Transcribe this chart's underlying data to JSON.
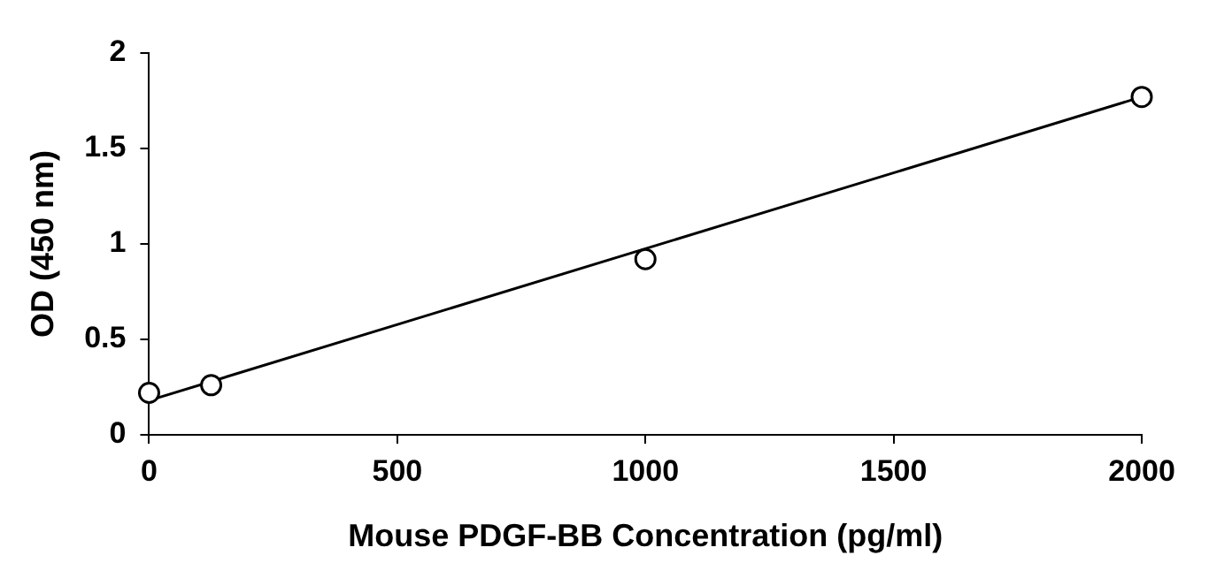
{
  "chart_data": {
    "type": "scatter",
    "xlabel": "Mouse PDGF-BB Concentration (pg/ml)",
    "ylabel": "OD (450 nm)",
    "xlim": [
      0,
      2000
    ],
    "xticks": [
      0,
      500,
      1000,
      1500,
      2000
    ],
    "ylim": [
      0,
      2
    ],
    "yticks": [
      0,
      0.5,
      1,
      1.5,
      2
    ],
    "grid": false,
    "legend": false,
    "series": [
      {
        "color": "#000000",
        "marker": "circle",
        "x": [
          0,
          125,
          1000,
          2000
        ],
        "values": [
          0.22,
          0.26,
          0.92,
          1.77
        ]
      },
      {
        "type": "line",
        "color": "#000000",
        "marker": "none",
        "line_style": "solid",
        "x": [
          0,
          2000
        ],
        "values": [
          0.18,
          1.77
        ]
      }
    ]
  }
}
